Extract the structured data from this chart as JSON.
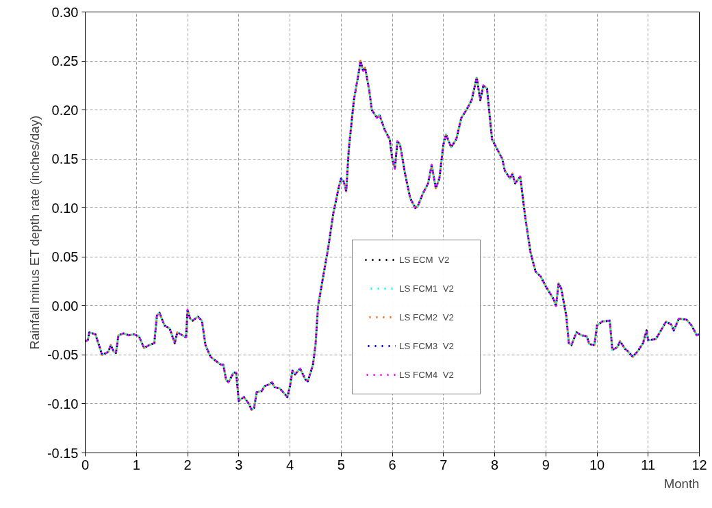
{
  "chart_data": {
    "type": "line",
    "xlabel": "Month",
    "ylabel": "Rainfall minus ET depth rate (inches/day)",
    "x": [
      0.0,
      0.05,
      0.08,
      0.2,
      0.33,
      0.45,
      0.5,
      0.55,
      0.6,
      0.65,
      0.75,
      0.85,
      0.95,
      1.05,
      1.15,
      1.25,
      1.35,
      1.4,
      1.45,
      1.55,
      1.65,
      1.75,
      1.8,
      1.9,
      1.97,
      2.0,
      2.05,
      2.1,
      2.2,
      2.28,
      2.35,
      2.45,
      2.55,
      2.65,
      2.7,
      2.75,
      2.8,
      2.9,
      2.95,
      3.0,
      3.1,
      3.2,
      3.25,
      3.3,
      3.35,
      3.45,
      3.5,
      3.6,
      3.65,
      3.7,
      3.8,
      3.9,
      3.95,
      4.0,
      4.05,
      4.1,
      4.2,
      4.3,
      4.35,
      4.45,
      4.5,
      4.55,
      4.65,
      4.75,
      4.85,
      4.95,
      5.0,
      5.05,
      5.1,
      5.15,
      5.25,
      5.35,
      5.38,
      5.43,
      5.47,
      5.55,
      5.6,
      5.7,
      5.75,
      5.85,
      5.95,
      6.0,
      6.05,
      6.1,
      6.15,
      6.25,
      6.35,
      6.45,
      6.5,
      6.6,
      6.7,
      6.77,
      6.85,
      6.92,
      7.0,
      7.05,
      7.15,
      7.25,
      7.35,
      7.45,
      7.55,
      7.65,
      7.72,
      7.78,
      7.85,
      7.95,
      8.05,
      8.15,
      8.2,
      8.3,
      8.35,
      8.4,
      8.5,
      8.6,
      8.7,
      8.8,
      8.9,
      9.0,
      9.15,
      9.2,
      9.25,
      9.3,
      9.4,
      9.45,
      9.5,
      9.6,
      9.7,
      9.8,
      9.85,
      9.95,
      10.0,
      10.1,
      10.25,
      10.3,
      10.4,
      10.45,
      10.55,
      10.6,
      10.7,
      10.8,
      10.9,
      10.97,
      11.0,
      11.15,
      11.25,
      11.35,
      11.45,
      11.5,
      11.6,
      11.75,
      11.85,
      11.95,
      12.0
    ],
    "series": [
      {
        "name": "LS ECM  V2",
        "color": "#000000",
        "values": [
          -0.036,
          -0.035,
          -0.027,
          -0.029,
          -0.05,
          -0.047,
          -0.04,
          -0.046,
          -0.048,
          -0.03,
          -0.028,
          -0.03,
          -0.029,
          -0.031,
          -0.043,
          -0.04,
          -0.038,
          -0.01,
          -0.007,
          -0.02,
          -0.023,
          -0.038,
          -0.027,
          -0.03,
          -0.032,
          -0.004,
          -0.013,
          -0.015,
          -0.011,
          -0.015,
          -0.04,
          -0.052,
          -0.056,
          -0.06,
          -0.06,
          -0.075,
          -0.078,
          -0.068,
          -0.068,
          -0.097,
          -0.093,
          -0.1,
          -0.106,
          -0.104,
          -0.088,
          -0.087,
          -0.082,
          -0.08,
          -0.078,
          -0.083,
          -0.084,
          -0.09,
          -0.093,
          -0.082,
          -0.066,
          -0.07,
          -0.064,
          -0.075,
          -0.077,
          -0.06,
          -0.04,
          0.0,
          0.03,
          0.06,
          0.095,
          0.12,
          0.13,
          0.127,
          0.117,
          0.16,
          0.21,
          0.24,
          0.25,
          0.24,
          0.243,
          0.22,
          0.2,
          0.192,
          0.195,
          0.18,
          0.17,
          0.15,
          0.14,
          0.168,
          0.165,
          0.135,
          0.11,
          0.1,
          0.102,
          0.115,
          0.125,
          0.144,
          0.12,
          0.13,
          0.165,
          0.175,
          0.162,
          0.17,
          0.192,
          0.2,
          0.21,
          0.233,
          0.21,
          0.225,
          0.222,
          0.17,
          0.16,
          0.15,
          0.138,
          0.13,
          0.135,
          0.125,
          0.132,
          0.09,
          0.055,
          0.035,
          0.03,
          0.02,
          0.007,
          0.0,
          0.023,
          0.018,
          -0.01,
          -0.038,
          -0.04,
          -0.027,
          -0.03,
          -0.031,
          -0.039,
          -0.04,
          -0.02,
          -0.016,
          -0.015,
          -0.045,
          -0.042,
          -0.036,
          -0.044,
          -0.046,
          -0.052,
          -0.046,
          -0.038,
          -0.025,
          -0.035,
          -0.034,
          -0.025,
          -0.016,
          -0.019,
          -0.025,
          -0.013,
          -0.014,
          -0.02,
          -0.03,
          -0.029
        ]
      },
      {
        "name": "LS FCM1  V2",
        "color": "#00ffff",
        "values": [
          -0.036,
          -0.035,
          -0.027,
          -0.029,
          -0.05,
          -0.047,
          -0.04,
          -0.046,
          -0.048,
          -0.03,
          -0.028,
          -0.03,
          -0.029,
          -0.031,
          -0.043,
          -0.04,
          -0.038,
          -0.01,
          -0.007,
          -0.02,
          -0.023,
          -0.038,
          -0.027,
          -0.03,
          -0.032,
          -0.004,
          -0.013,
          -0.015,
          -0.011,
          -0.015,
          -0.04,
          -0.052,
          -0.056,
          -0.06,
          -0.06,
          -0.075,
          -0.078,
          -0.068,
          -0.068,
          -0.097,
          -0.093,
          -0.1,
          -0.106,
          -0.104,
          -0.088,
          -0.087,
          -0.082,
          -0.08,
          -0.078,
          -0.083,
          -0.084,
          -0.09,
          -0.093,
          -0.082,
          -0.066,
          -0.07,
          -0.064,
          -0.075,
          -0.077,
          -0.06,
          -0.04,
          0.0,
          0.03,
          0.06,
          0.095,
          0.12,
          0.13,
          0.127,
          0.117,
          0.16,
          0.21,
          0.24,
          0.25,
          0.24,
          0.243,
          0.22,
          0.2,
          0.192,
          0.195,
          0.18,
          0.17,
          0.15,
          0.14,
          0.168,
          0.165,
          0.135,
          0.11,
          0.1,
          0.102,
          0.115,
          0.125,
          0.144,
          0.12,
          0.13,
          0.165,
          0.175,
          0.162,
          0.17,
          0.192,
          0.2,
          0.21,
          0.233,
          0.21,
          0.225,
          0.222,
          0.17,
          0.16,
          0.15,
          0.138,
          0.13,
          0.135,
          0.125,
          0.132,
          0.09,
          0.055,
          0.035,
          0.03,
          0.02,
          0.007,
          0.0,
          0.023,
          0.018,
          -0.01,
          -0.038,
          -0.04,
          -0.027,
          -0.03,
          -0.031,
          -0.039,
          -0.04,
          -0.02,
          -0.016,
          -0.015,
          -0.045,
          -0.042,
          -0.036,
          -0.044,
          -0.046,
          -0.052,
          -0.046,
          -0.038,
          -0.025,
          -0.035,
          -0.034,
          -0.025,
          -0.016,
          -0.019,
          -0.025,
          -0.013,
          -0.014,
          -0.02,
          -0.03,
          -0.029
        ]
      },
      {
        "name": "LS FCM2  V2",
        "color": "#ff6600",
        "values": [
          -0.036,
          -0.035,
          -0.027,
          -0.029,
          -0.05,
          -0.047,
          -0.04,
          -0.046,
          -0.048,
          -0.03,
          -0.028,
          -0.03,
          -0.029,
          -0.031,
          -0.043,
          -0.04,
          -0.038,
          -0.01,
          -0.007,
          -0.02,
          -0.023,
          -0.038,
          -0.027,
          -0.03,
          -0.032,
          -0.004,
          -0.013,
          -0.015,
          -0.011,
          -0.015,
          -0.04,
          -0.052,
          -0.056,
          -0.06,
          -0.06,
          -0.075,
          -0.078,
          -0.068,
          -0.068,
          -0.097,
          -0.093,
          -0.1,
          -0.106,
          -0.104,
          -0.088,
          -0.087,
          -0.082,
          -0.08,
          -0.078,
          -0.083,
          -0.084,
          -0.09,
          -0.093,
          -0.082,
          -0.066,
          -0.07,
          -0.064,
          -0.075,
          -0.077,
          -0.06,
          -0.04,
          0.0,
          0.03,
          0.06,
          0.095,
          0.12,
          0.13,
          0.127,
          0.117,
          0.16,
          0.21,
          0.24,
          0.25,
          0.24,
          0.243,
          0.22,
          0.2,
          0.192,
          0.195,
          0.18,
          0.17,
          0.15,
          0.14,
          0.168,
          0.165,
          0.135,
          0.11,
          0.1,
          0.102,
          0.115,
          0.125,
          0.144,
          0.12,
          0.13,
          0.165,
          0.175,
          0.162,
          0.17,
          0.192,
          0.2,
          0.21,
          0.233,
          0.21,
          0.225,
          0.222,
          0.17,
          0.16,
          0.15,
          0.138,
          0.13,
          0.135,
          0.125,
          0.132,
          0.09,
          0.055,
          0.035,
          0.03,
          0.02,
          0.007,
          0.0,
          0.023,
          0.018,
          -0.01,
          -0.038,
          -0.04,
          -0.027,
          -0.03,
          -0.031,
          -0.039,
          -0.04,
          -0.02,
          -0.016,
          -0.015,
          -0.045,
          -0.042,
          -0.036,
          -0.044,
          -0.046,
          -0.052,
          -0.046,
          -0.038,
          -0.025,
          -0.035,
          -0.034,
          -0.025,
          -0.016,
          -0.019,
          -0.025,
          -0.013,
          -0.014,
          -0.02,
          -0.03,
          -0.029
        ]
      },
      {
        "name": "LS FCM3  V2",
        "color": "#0000ff",
        "values": [
          -0.036,
          -0.035,
          -0.027,
          -0.029,
          -0.05,
          -0.047,
          -0.04,
          -0.046,
          -0.048,
          -0.03,
          -0.028,
          -0.03,
          -0.029,
          -0.031,
          -0.043,
          -0.04,
          -0.038,
          -0.01,
          -0.007,
          -0.02,
          -0.023,
          -0.038,
          -0.027,
          -0.03,
          -0.032,
          -0.004,
          -0.013,
          -0.015,
          -0.011,
          -0.015,
          -0.04,
          -0.052,
          -0.056,
          -0.06,
          -0.06,
          -0.075,
          -0.078,
          -0.068,
          -0.068,
          -0.097,
          -0.093,
          -0.1,
          -0.106,
          -0.104,
          -0.088,
          -0.087,
          -0.082,
          -0.08,
          -0.078,
          -0.083,
          -0.084,
          -0.09,
          -0.093,
          -0.082,
          -0.066,
          -0.07,
          -0.064,
          -0.075,
          -0.077,
          -0.06,
          -0.04,
          0.0,
          0.03,
          0.06,
          0.095,
          0.12,
          0.13,
          0.127,
          0.117,
          0.16,
          0.21,
          0.24,
          0.25,
          0.24,
          0.243,
          0.22,
          0.2,
          0.192,
          0.195,
          0.18,
          0.17,
          0.15,
          0.14,
          0.168,
          0.165,
          0.135,
          0.11,
          0.1,
          0.102,
          0.115,
          0.125,
          0.144,
          0.12,
          0.13,
          0.165,
          0.175,
          0.162,
          0.17,
          0.192,
          0.2,
          0.21,
          0.233,
          0.21,
          0.225,
          0.222,
          0.17,
          0.16,
          0.15,
          0.138,
          0.13,
          0.135,
          0.125,
          0.132,
          0.09,
          0.055,
          0.035,
          0.03,
          0.02,
          0.007,
          0.0,
          0.023,
          0.018,
          -0.01,
          -0.038,
          -0.04,
          -0.027,
          -0.03,
          -0.031,
          -0.039,
          -0.04,
          -0.02,
          -0.016,
          -0.015,
          -0.045,
          -0.042,
          -0.036,
          -0.044,
          -0.046,
          -0.052,
          -0.046,
          -0.038,
          -0.025,
          -0.035,
          -0.034,
          -0.025,
          -0.016,
          -0.019,
          -0.025,
          -0.013,
          -0.014,
          -0.02,
          -0.03,
          -0.029
        ]
      },
      {
        "name": "LS FCM4  V2",
        "color": "#ff00ff",
        "values": [
          -0.036,
          -0.035,
          -0.027,
          -0.029,
          -0.05,
          -0.047,
          -0.04,
          -0.046,
          -0.048,
          -0.03,
          -0.028,
          -0.03,
          -0.029,
          -0.031,
          -0.043,
          -0.04,
          -0.038,
          -0.01,
          -0.007,
          -0.02,
          -0.023,
          -0.038,
          -0.027,
          -0.03,
          -0.032,
          -0.004,
          -0.013,
          -0.015,
          -0.011,
          -0.015,
          -0.04,
          -0.052,
          -0.056,
          -0.06,
          -0.06,
          -0.075,
          -0.078,
          -0.068,
          -0.068,
          -0.097,
          -0.093,
          -0.1,
          -0.106,
          -0.104,
          -0.088,
          -0.087,
          -0.082,
          -0.08,
          -0.078,
          -0.083,
          -0.084,
          -0.09,
          -0.093,
          -0.082,
          -0.066,
          -0.07,
          -0.064,
          -0.075,
          -0.077,
          -0.06,
          -0.04,
          0.0,
          0.03,
          0.06,
          0.095,
          0.12,
          0.13,
          0.127,
          0.117,
          0.16,
          0.21,
          0.24,
          0.25,
          0.24,
          0.243,
          0.22,
          0.2,
          0.192,
          0.195,
          0.18,
          0.17,
          0.15,
          0.14,
          0.168,
          0.165,
          0.135,
          0.11,
          0.1,
          0.102,
          0.115,
          0.125,
          0.144,
          0.12,
          0.13,
          0.165,
          0.175,
          0.162,
          0.17,
          0.192,
          0.2,
          0.21,
          0.233,
          0.21,
          0.225,
          0.222,
          0.17,
          0.16,
          0.15,
          0.138,
          0.13,
          0.135,
          0.125,
          0.132,
          0.09,
          0.055,
          0.035,
          0.03,
          0.02,
          0.007,
          0.0,
          0.023,
          0.018,
          -0.01,
          -0.038,
          -0.04,
          -0.027,
          -0.03,
          -0.031,
          -0.039,
          -0.04,
          -0.02,
          -0.016,
          -0.015,
          -0.045,
          -0.042,
          -0.036,
          -0.044,
          -0.046,
          -0.052,
          -0.046,
          -0.038,
          -0.025,
          -0.035,
          -0.034,
          -0.025,
          -0.016,
          -0.019,
          -0.025,
          -0.013,
          -0.014,
          -0.02,
          -0.03,
          -0.029
        ]
      }
    ],
    "xlim": [
      0,
      12
    ],
    "xticks": [
      0,
      1,
      2,
      3,
      4,
      5,
      6,
      7,
      8,
      9,
      10,
      11,
      12
    ],
    "ylim": [
      -0.15,
      0.3
    ],
    "yticks": [
      {
        "value": -0.15,
        "label": "-0.15"
      },
      {
        "value": -0.1,
        "label": "-0.10"
      },
      {
        "value": -0.05,
        "label": "-0.05"
      },
      {
        "value": 0,
        "label": "0.00"
      },
      {
        "value": 0.05,
        "label": "0.05"
      },
      {
        "value": 0.1,
        "label": "0.10"
      },
      {
        "value": 0.15,
        "label": "0.15"
      },
      {
        "value": 0.2,
        "label": "0.20"
      },
      {
        "value": 0.25,
        "label": "0.25"
      },
      {
        "value": 0.3,
        "label": "0.30"
      }
    ],
    "grid": true,
    "legend": "center",
    "line_style": "dashed",
    "marker": "none"
  }
}
